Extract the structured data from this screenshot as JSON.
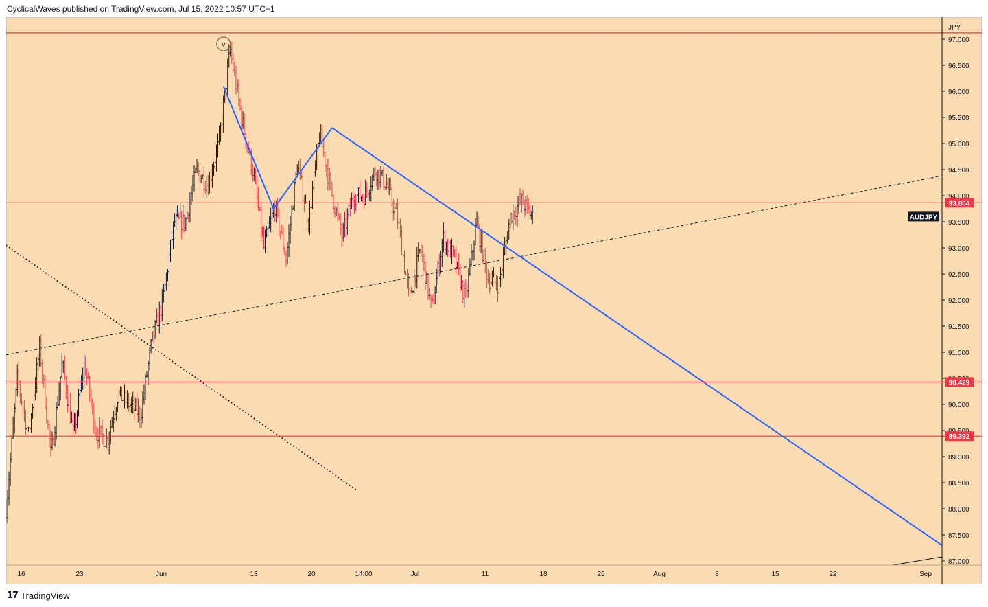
{
  "header": {
    "publisher_line": "CyclicalWaves published on TradingView.com, Jul 15, 2022 10:57 UTC+1"
  },
  "footer": {
    "logo_glyph": "17",
    "brand": "TradingView"
  },
  "colors": {
    "background": "#fadbb2",
    "up_bar": "#131722",
    "down_bar": "#f23645",
    "horizontal_level": "#f23645",
    "trendline": "#2962ff",
    "wave_line": "#2962ff",
    "channel_dashed": "#131722"
  },
  "chart_data": {
    "type": "ohlc_bar",
    "symbol": "AUDJPY",
    "currency": "JPY",
    "wave_label": "v",
    "ylim": [
      87.0,
      97.15
    ],
    "x_tick_labels": [
      "16",
      "23",
      "Jun",
      "13",
      "20",
      "14:00",
      "Jul",
      "11",
      "18",
      "25",
      "Aug",
      "8",
      "15",
      "22",
      "Sep"
    ],
    "y_tick_labels": [
      "97.000",
      "96.500",
      "96.000",
      "95.500",
      "95.000",
      "94.500",
      "94.000",
      "93.500",
      "93.000",
      "92.500",
      "92.000",
      "91.500",
      "91.000",
      "90.500",
      "90.000",
      "89.500",
      "89.000",
      "88.500",
      "88.000",
      "87.500",
      "87.000"
    ],
    "horizontal_levels": [
      {
        "value": 97.12,
        "label": ""
      },
      {
        "value": 93.864,
        "label": "93.864"
      },
      {
        "value": 90.429,
        "label": "90.429"
      },
      {
        "value": 89.392,
        "label": "89.392"
      }
    ],
    "price_tag": "AUDJPY",
    "price_tag_value": 93.6,
    "wave_path": [
      {
        "x": "2022-06-08",
        "y": 96.1
      },
      {
        "x": "2022-06-14",
        "y": 93.75
      },
      {
        "x": "2022-06-21",
        "y": 95.3
      }
    ],
    "trendline": [
      {
        "x": "2022-06-21",
        "y": 95.3
      },
      {
        "x": "2022-09-02",
        "y": 87.3
      }
    ],
    "dashed_channel": [
      {
        "x": "2022-05-13",
        "y": 90.95
      },
      {
        "x": "2022-09-02",
        "y": 94.38
      }
    ],
    "dotted_line": [
      {
        "x": "2022-05-13",
        "y": 93.05
      },
      {
        "x": "2022-06-24",
        "y": 88.35
      }
    ],
    "series": [
      {
        "name": "AUDJPY",
        "x_start": "2022-05-13",
        "x_end": "2022-07-15",
        "anchors": [
          88.0,
          90.5,
          89.4,
          91.1,
          89.0,
          90.8,
          89.4,
          90.8,
          89.5,
          89.3,
          90.2,
          90.0,
          89.8,
          91.2,
          92.0,
          93.5,
          93.5,
          94.5,
          94.2,
          95.0,
          96.8,
          95.5,
          94.5,
          93.0,
          93.8,
          92.8,
          94.6,
          93.5,
          95.2,
          94.1,
          93.2,
          94.0,
          94.0,
          94.5,
          94.2,
          93.5,
          92.0,
          93.0,
          91.8,
          93.2,
          92.8,
          92.0,
          93.5,
          92.4,
          92.3,
          93.6,
          93.9,
          93.6
        ]
      }
    ]
  }
}
